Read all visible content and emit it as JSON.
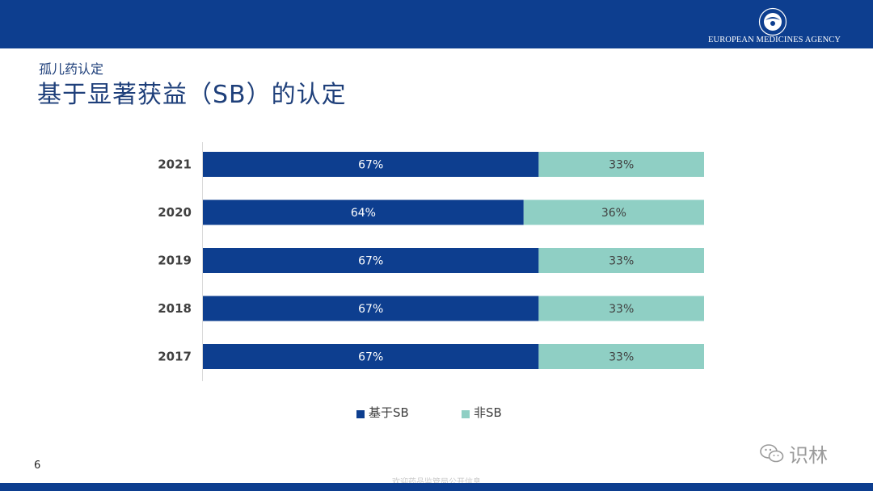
{
  "header": {
    "agency_name": "EUROPEAN MEDICINES AGENCY",
    "logo_icon": "ema-star-circle-icon"
  },
  "slide": {
    "subtitle": "孤儿药认定",
    "title": "基于显著获益（SB）的认定",
    "page_number": "6"
  },
  "watermark": {
    "text": "识林",
    "icon": "wechat-icon"
  },
  "footer": {
    "text": "欢迎药品监管局公开信息"
  },
  "colors": {
    "brand_blue": "#0d3e8f",
    "series_sb": "#0d3e8f",
    "series_non_sb": "#8fcfc4"
  },
  "chart_data": {
    "type": "bar",
    "orientation": "horizontal",
    "stacked": true,
    "percent": true,
    "categories": [
      "2021",
      "2020",
      "2019",
      "2018",
      "2017"
    ],
    "series": [
      {
        "name": "基于SB",
        "values": [
          67,
          64,
          67,
          67,
          67
        ],
        "labels": [
          "67%",
          "64%",
          "67%",
          "67%",
          "67%"
        ],
        "color": "#0d3e8f"
      },
      {
        "name": "非SB",
        "values": [
          33,
          36,
          33,
          33,
          33
        ],
        "labels": [
          "33%",
          "36%",
          "33%",
          "33%",
          "33%"
        ],
        "color": "#8fcfc4"
      }
    ],
    "xlim": [
      0,
      100
    ],
    "grid": false,
    "legend": "bottom-center",
    "title": "",
    "xlabel": "",
    "ylabel": ""
  }
}
